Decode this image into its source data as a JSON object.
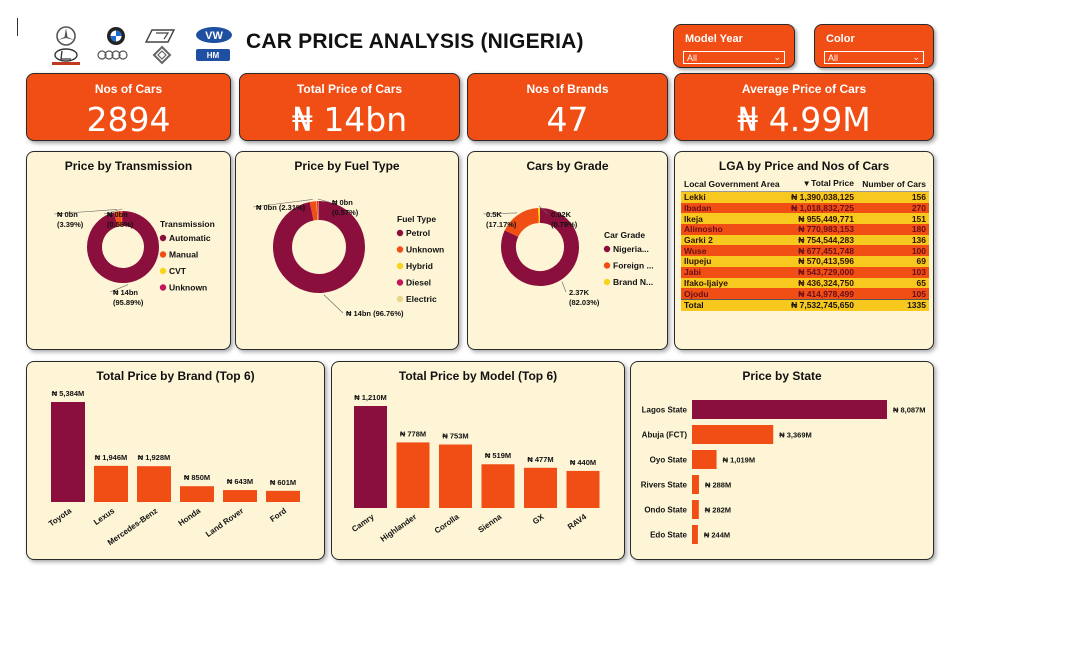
{
  "header": {
    "title": "CAR PRICE ANALYSIS (NIGERIA)"
  },
  "logos": [
    "mercedes-logo",
    "bmw-logo",
    "peugeot-logo",
    "vw-logo",
    "lexus-logo",
    "audi-logo",
    "renault-logo",
    "hyundai-logo"
  ],
  "slicers": [
    {
      "label": "Model Year",
      "value": "All"
    },
    {
      "label": "Color",
      "value": "All"
    }
  ],
  "kpis": [
    {
      "label": "Nos of Cars",
      "value": "2894"
    },
    {
      "label": "Total Price of Cars",
      "value": "₦ 14bn"
    },
    {
      "label": "Nos of Brands",
      "value": "47"
    },
    {
      "label": "Average Price of Cars",
      "value": "₦ 4.99M"
    }
  ],
  "colors": {
    "maroon": "#8b0f3d",
    "orange": "#f04e14",
    "yellow": "#f7d41e",
    "cream": "#fdf5d6",
    "unknown_pink": "#c2185b",
    "electric": "#e8d58b"
  },
  "chart_data": [
    {
      "id": "transmission",
      "type": "pie",
      "title": "Price by Transmission",
      "legend_title": "Transmission",
      "slices": [
        {
          "label": "Automatic",
          "value": 95.89,
          "color": "#8b0f3d",
          "data_label": [
            "₦ 14bn",
            "(95.89%)"
          ]
        },
        {
          "label": "Manual",
          "value": 3.39,
          "color": "#f04e14",
          "data_label": [
            "₦ 0bn",
            "(3.39%)"
          ]
        },
        {
          "label": "CVT",
          "value": 0.14,
          "color": "#f7d41e",
          "data_label": []
        },
        {
          "label": "Unknown",
          "value": 0.58,
          "color": "#c2185b",
          "data_label": [
            "₦ 0bn",
            "(0.58%)"
          ]
        }
      ]
    },
    {
      "id": "fuel",
      "type": "pie",
      "title": "Price by Fuel Type",
      "legend_title": "Fuel Type",
      "slices": [
        {
          "label": "Petrol",
          "value": 96.76,
          "color": "#8b0f3d",
          "data_label": [
            "₦ 14bn (96.76%)"
          ]
        },
        {
          "label": "Unknown",
          "value": 2.31,
          "color": "#f04e14",
          "data_label": [
            "₦ 0bn (2.31%)"
          ]
        },
        {
          "label": "Hybrid",
          "value": 0.25,
          "color": "#f7d41e",
          "data_label": []
        },
        {
          "label": "Diesel",
          "value": 0.57,
          "color": "#c2185b",
          "data_label": [
            "₦ 0bn",
            "(0.57%)"
          ]
        },
        {
          "label": "Electric",
          "value": 0.11,
          "color": "#e8d58b",
          "data_label": []
        }
      ]
    },
    {
      "id": "grade",
      "type": "pie",
      "title": "Cars by Grade",
      "legend_title": "Car Grade",
      "slices": [
        {
          "label": "Nigeria...",
          "value": 82.03,
          "color": "#8b0f3d",
          "data_label": [
            "2.37K",
            "(82.03%)"
          ]
        },
        {
          "label": "Foreign ...",
          "value": 17.17,
          "color": "#f04e14",
          "data_label": [
            "0.5K",
            "(17.17%)"
          ]
        },
        {
          "label": "Brand N...",
          "value": 0.79,
          "color": "#f7d41e",
          "data_label": [
            "0.02K",
            "(0.79%)"
          ]
        }
      ]
    },
    {
      "id": "brand",
      "type": "bar",
      "title": "Total Price by Brand (Top 6)",
      "categories": [
        "Toyota",
        "Lexus",
        "Mercedes-Benz",
        "Honda",
        "Land Rover",
        "Ford"
      ],
      "values": [
        5384,
        1946,
        1928,
        850,
        643,
        601
      ],
      "value_labels": [
        "₦ 5,384M",
        "₦ 1,946M",
        "₦ 1,928M",
        "₦ 850M",
        "₦ 643M",
        "₦ 601M"
      ]
    },
    {
      "id": "model",
      "type": "bar",
      "title": "Total Price by Model (Top 6)",
      "categories": [
        "Camry",
        "Highlander",
        "Corolla",
        "Sienna",
        "GX",
        "RAV4"
      ],
      "values": [
        1210,
        778,
        753,
        519,
        477,
        440
      ],
      "value_labels": [
        "₦ 1,210M",
        "₦ 778M",
        "₦ 753M",
        "₦ 519M",
        "₦ 477M",
        "₦ 440M"
      ]
    },
    {
      "id": "state",
      "type": "bar",
      "orientation": "horizontal",
      "title": "Price by State",
      "categories": [
        "Lagos State",
        "Abuja (FCT)",
        "Oyo State",
        "Rivers State",
        "Ondo State",
        "Edo State"
      ],
      "values": [
        8087,
        3369,
        1019,
        288,
        282,
        244
      ],
      "value_labels": [
        "₦ 8,087M",
        "₦ 3,369M",
        "₦ 1,019M",
        "₦ 288M",
        "₦ 282M",
        "₦ 244M"
      ]
    },
    {
      "id": "lga",
      "type": "table",
      "title": "LGA by Price and Nos of Cars",
      "columns": [
        "Local Government Area",
        "Total Price",
        "Number of Cars"
      ],
      "rows": [
        [
          "Lekki",
          "₦ 1,390,038,125",
          "156"
        ],
        [
          "Ibadan",
          "₦ 1,018,832,725",
          "270"
        ],
        [
          "Ikeja",
          "₦ 955,449,771",
          "151"
        ],
        [
          "Alimosho",
          "₦ 770,983,153",
          "180"
        ],
        [
          "Garki 2",
          "₦ 754,544,283",
          "136"
        ],
        [
          "Wuse",
          "₦ 677,451,748",
          "100"
        ],
        [
          "Ilupeju",
          "₦ 570,413,596",
          "69"
        ],
        [
          "Jabi",
          "₦ 543,729,000",
          "103"
        ],
        [
          "Ifako-Ijaiye",
          "₦ 436,324,750",
          "65"
        ],
        [
          "Ojodu",
          "₦ 414,978,499",
          "105"
        ]
      ],
      "total": [
        "Total",
        "₦ 7,532,745,650",
        "1335"
      ]
    }
  ]
}
